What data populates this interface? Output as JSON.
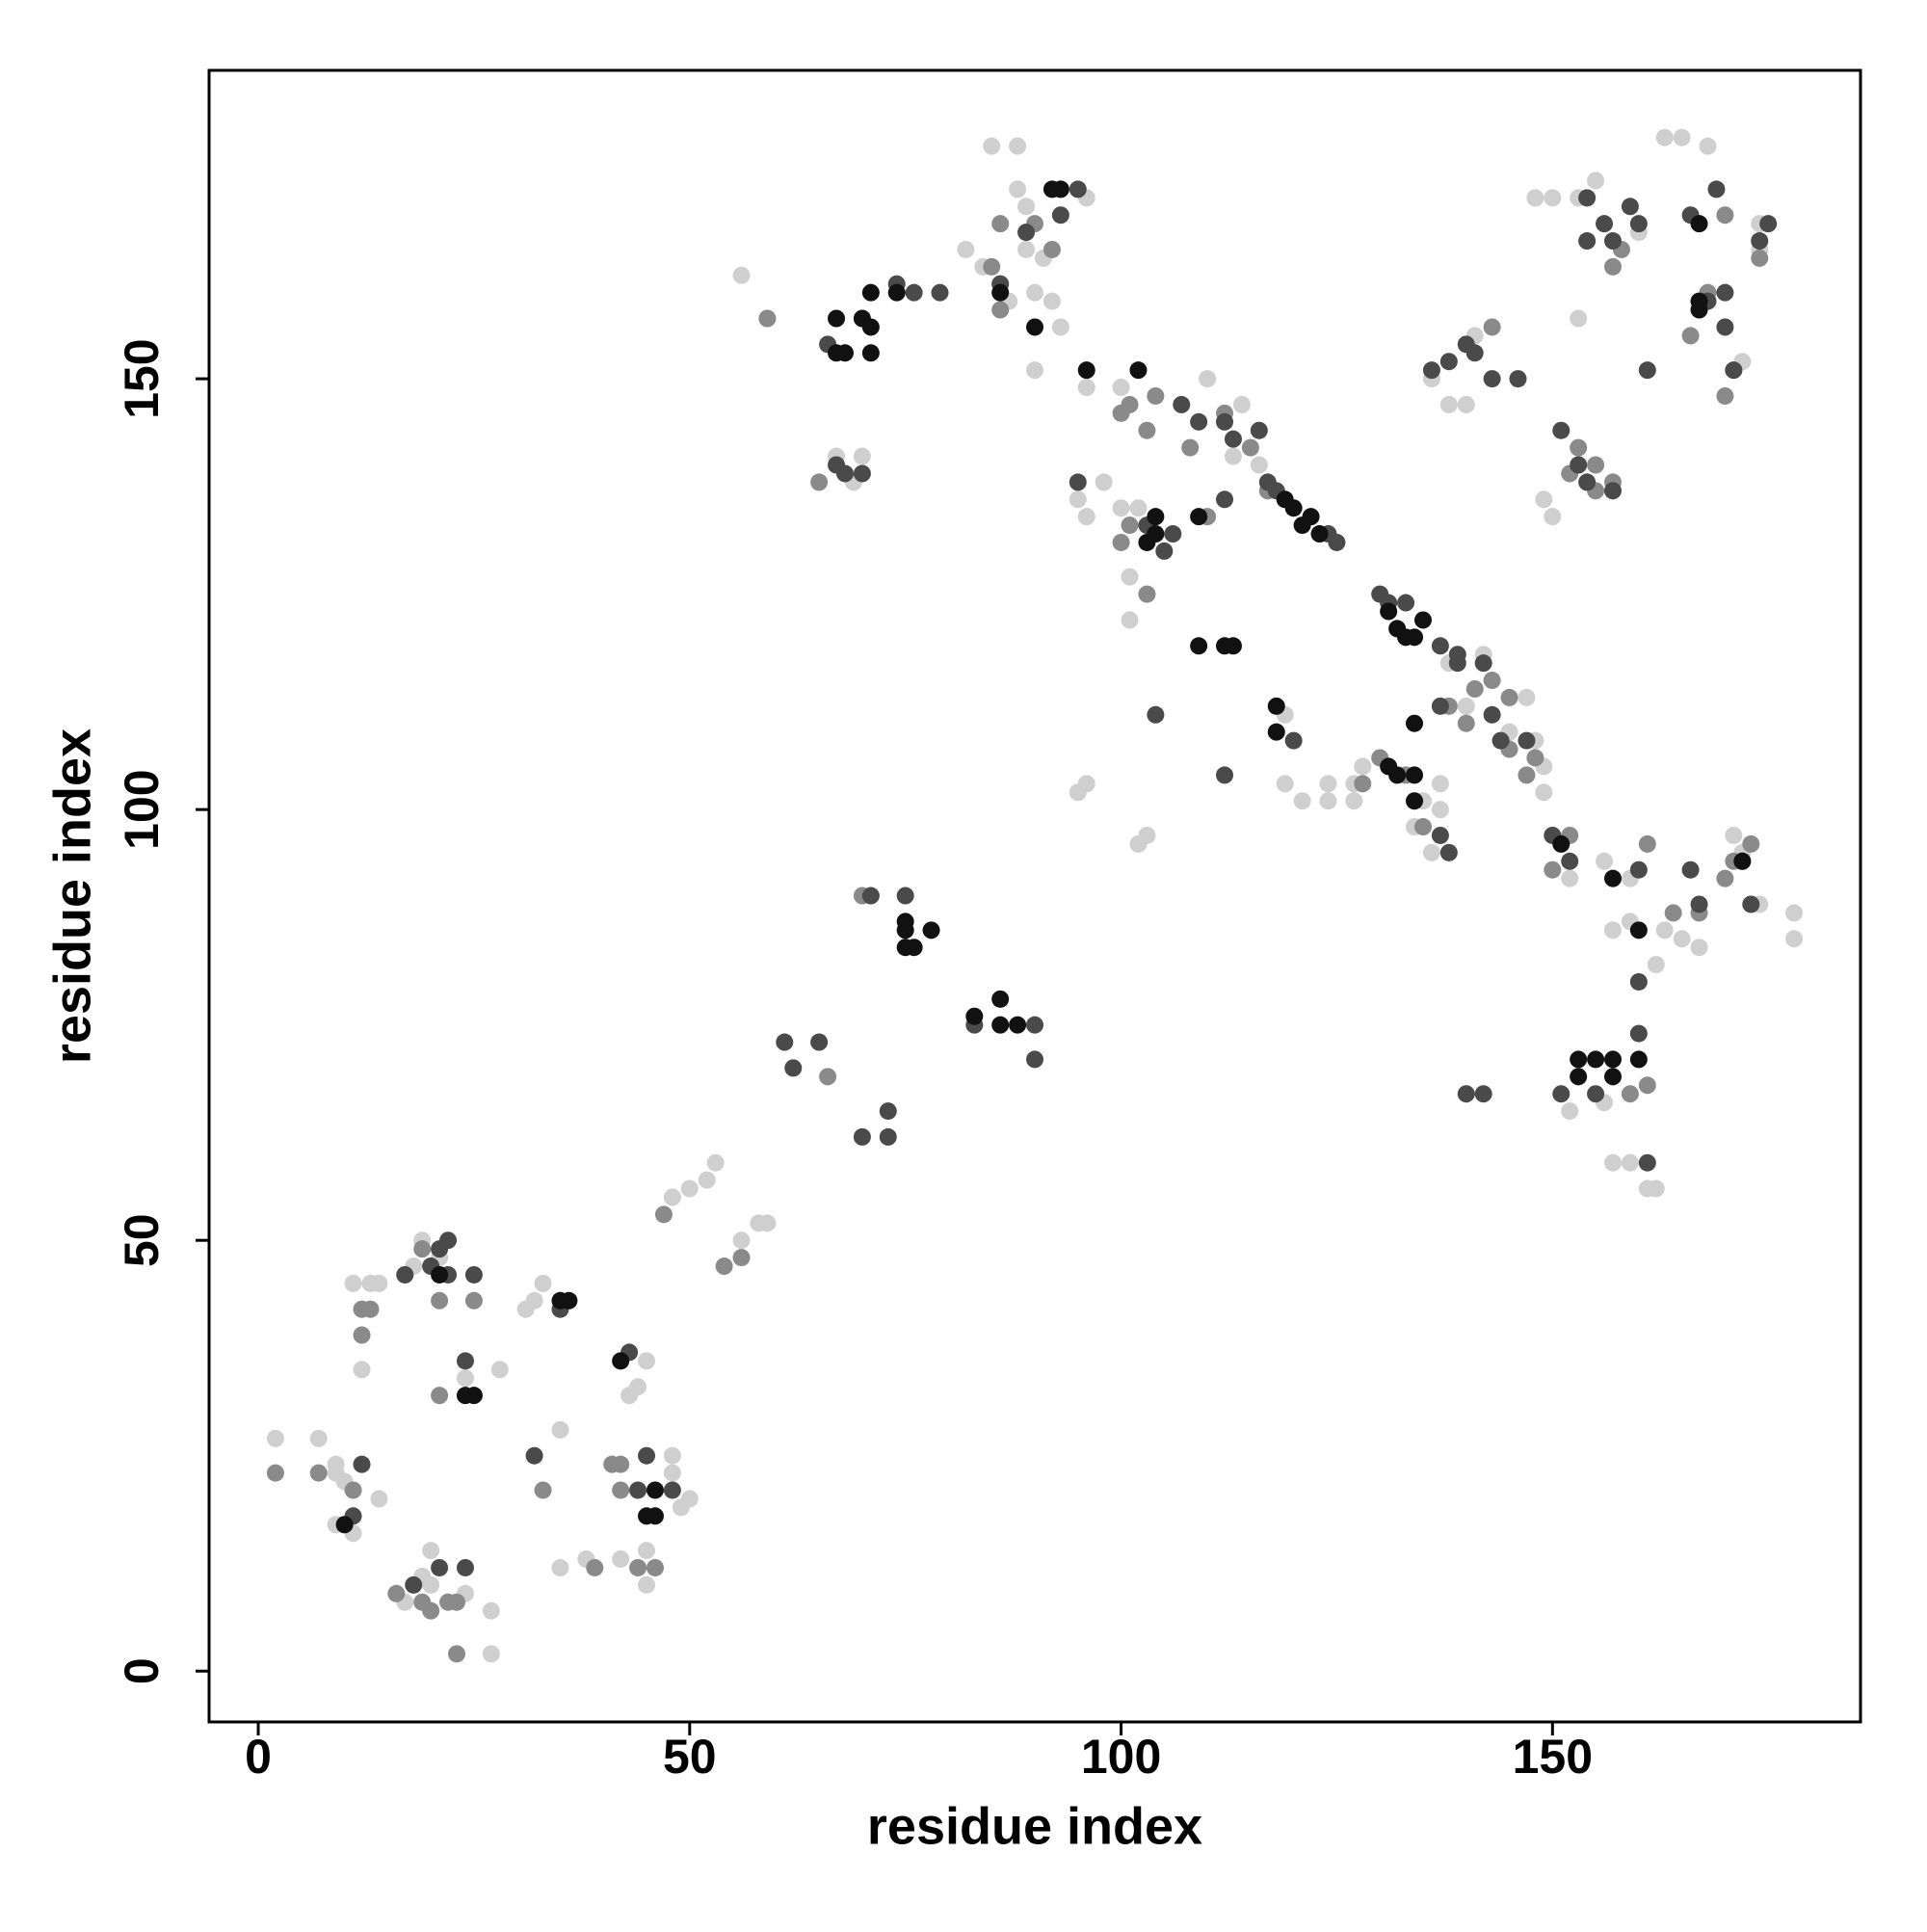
{
  "chart_data": {
    "type": "scatter",
    "x_label": "residue index",
    "y_label": "residue index",
    "xlim": [
      -5.7,
      185.7
    ],
    "ylim": [
      -5.9,
      185.8
    ],
    "xticks": [
      0,
      50,
      100,
      150
    ],
    "yticks": [
      0,
      50,
      100,
      150
    ],
    "series": [
      {
        "color": "#cfcfcf",
        "x": [
          2,
          7,
          9,
          9,
          11,
          9,
          10,
          11,
          13,
          12,
          14,
          14,
          18,
          19,
          21,
          20,
          19,
          17,
          20,
          24,
          27,
          27,
          24,
          28,
          31,
          32,
          33,
          35,
          35,
          38,
          42,
          43,
          44,
          45,
          45,
          45,
          48,
          48,
          49,
          50,
          48,
          50,
          52,
          53,
          56,
          58,
          59,
          56,
          59,
          69,
          70,
          67,
          85,
          88,
          88,
          89,
          89,
          91,
          90,
          92,
          93,
          96,
          87,
          90,
          82,
          84,
          95,
          96,
          98,
          96,
          100,
          101,
          101,
          102,
          103,
          95,
          96,
          100,
          102,
          110,
          112,
          113,
          114,
          116,
          119,
          119,
          121,
          124,
          124,
          127,
          127,
          128,
          134,
          136,
          137,
          138,
          140,
          142,
          147,
          148,
          149,
          149,
          150,
          152,
          153,
          156,
          157,
          159,
          159,
          162,
          163,
          165,
          167,
          171,
          172,
          174,
          178,
          178,
          149,
          150,
          148,
          150,
          153,
          155,
          160,
          163,
          165,
          168,
          172,
          174,
          174,
          174,
          157,
          159,
          161,
          162,
          145,
          135,
          137,
          136,
          138,
          140,
          141,
          152,
          156
        ],
        "y": [
          27,
          27,
          23,
          24,
          16,
          17,
          22,
          45,
          45,
          35,
          20,
          45,
          47,
          50,
          48,
          14,
          11,
          8,
          10,
          9,
          7,
          2,
          34,
          35,
          42,
          43,
          45,
          28,
          12,
          13,
          13,
          32,
          33,
          36,
          14,
          10,
          23,
          25,
          19,
          20,
          55,
          56,
          57,
          59,
          50,
          52,
          52,
          162,
          157,
          138,
          141,
          141,
          177,
          177,
          172,
          170,
          165,
          164,
          160,
          159,
          156,
          171,
          159,
          151,
          165,
          163,
          136,
          134,
          138,
          149,
          149,
          127,
          122,
          96,
          97,
          102,
          103,
          135,
          135,
          150,
          145,
          141,
          147,
          140,
          111,
          103,
          101,
          101,
          103,
          101,
          103,
          105,
          98,
          95,
          100,
          117,
          112,
          118,
          113,
          108,
          105,
          102,
          97,
          92,
          157,
          94,
          86,
          87,
          92,
          82,
          86,
          85,
          84,
          97,
          95,
          89,
          88,
          85,
          136,
          134,
          171,
          171,
          171,
          173,
          167,
          178,
          178,
          177,
          152,
          165,
          166,
          168,
          59,
          59,
          56,
          56,
          109,
          101,
          103,
          150,
          147,
          147,
          155,
          65,
          66
        ]
      },
      {
        "color": "#8a8a8a",
        "x": [
          2,
          7,
          11,
          12,
          12,
          13,
          17,
          19,
          21,
          25,
          23,
          23,
          21,
          33,
          41,
          42,
          39,
          44,
          46,
          47,
          54,
          56,
          59,
          66,
          70,
          65,
          85,
          86,
          86,
          86,
          90,
          92,
          100,
          101,
          103,
          104,
          108,
          110,
          112,
          115,
          100,
          101,
          103,
          117,
          128,
          130,
          133,
          135,
          138,
          140,
          141,
          143,
          145,
          145,
          147,
          148,
          150,
          152,
          164,
          167,
          170,
          171,
          173,
          161,
          153,
          152,
          155,
          155,
          157,
          157,
          158,
          161,
          159,
          166,
          168,
          170,
          171,
          143,
          170,
          174,
          42,
          19,
          20,
          22,
          16
        ],
        "y": [
          23,
          23,
          21,
          42,
          39,
          42,
          46,
          49,
          43,
          43,
          8,
          2,
          32,
          21,
          24,
          21,
          12,
          12,
          12,
          53,
          47,
          48,
          157,
          69,
          90,
          138,
          163,
          161,
          158,
          168,
          168,
          165,
          146,
          147,
          144,
          148,
          142,
          134,
          146,
          142,
          131,
          133,
          125,
          137,
          103,
          106,
          104,
          98,
          112,
          110,
          114,
          115,
          113,
          107,
          104,
          106,
          93,
          97,
          88,
          88,
          92,
          94,
          96,
          96,
          142,
          139,
          137,
          140,
          138,
          163,
          165,
          68,
          67,
          155,
          160,
          148,
          151,
          156,
          169,
          164,
          24,
          8,
          7,
          8,
          9
        ]
      },
      {
        "color": "#4a4a4a",
        "x": [
          11,
          12,
          24,
          22,
          25,
          21,
          22,
          32,
          35,
          43,
          45,
          48,
          44,
          18,
          21,
          24,
          17,
          20,
          62,
          61,
          65,
          70,
          73,
          73,
          71,
          75,
          83,
          90,
          90,
          70,
          68,
          67,
          66,
          74,
          76,
          79,
          86,
          89,
          93,
          95,
          95,
          107,
          109,
          112,
          113,
          116,
          117,
          118,
          124,
          125,
          106,
          105,
          103,
          104,
          112,
          112,
          120,
          130,
          131,
          133,
          137,
          139,
          137,
          142,
          143,
          144,
          147,
          150,
          152,
          151,
          153,
          154,
          157,
          160,
          160,
          160,
          161,
          155,
          139,
          140,
          142,
          151,
          154,
          154,
          156,
          157,
          159,
          160,
          161,
          136,
          138,
          140,
          141,
          143,
          146,
          170,
          171,
          172,
          173,
          167,
          166,
          174,
          175,
          169,
          166,
          168,
          170,
          138,
          137
        ],
        "y": [
          18,
          24,
          36,
          46,
          46,
          49,
          50,
          25,
          42,
          37,
          25,
          21,
          21,
          10,
          12,
          12,
          46,
          47,
          70,
          73,
          73,
          62,
          62,
          65,
          90,
          90,
          75,
          71,
          75,
          139,
          139,
          140,
          154,
          161,
          160,
          160,
          161,
          167,
          169,
          172,
          138,
          147,
          145,
          145,
          143,
          144,
          138,
          137,
          132,
          131,
          132,
          130,
          133,
          111,
          136,
          104,
          108,
          125,
          124,
          124,
          119,
          117,
          112,
          117,
          111,
          108,
          108,
          97,
          94,
          144,
          140,
          138,
          137,
          93,
          80,
          74,
          59,
          67,
          118,
          67,
          67,
          67,
          171,
          166,
          168,
          166,
          170,
          168,
          151,
          151,
          152,
          154,
          153,
          150,
          150,
          156,
          151,
          94,
          89,
          89,
          93,
          166,
          168,
          172,
          169,
          159,
          160,
          95,
          97
        ]
      },
      {
        "color": "#111111",
        "x": [
          10,
          24,
          25,
          21,
          35,
          36,
          42,
          46,
          45,
          46,
          67,
          67,
          68,
          71,
          70,
          71,
          71,
          74,
          75,
          75,
          75,
          76,
          78,
          83,
          86,
          86,
          88,
          86,
          90,
          92,
          93,
          96,
          102,
          104,
          104,
          103,
          109,
          109,
          112,
          113,
          118,
          118,
          119,
          120,
          122,
          121,
          123,
          131,
          132,
          133,
          134,
          135,
          134,
          131,
          132,
          134,
          134,
          157,
          160,
          153,
          155,
          153,
          157,
          157,
          160,
          167,
          167,
          172,
          151,
          167
        ],
        "y": [
          17,
          32,
          32,
          46,
          43,
          43,
          36,
          21,
          18,
          18,
          157,
          153,
          153,
          160,
          157,
          156,
          153,
          160,
          87,
          86,
          84,
          84,
          86,
          76,
          78,
          75,
          75,
          160,
          156,
          172,
          172,
          151,
          151,
          134,
          132,
          131,
          134,
          119,
          119,
          119,
          112,
          109,
          136,
          135,
          134,
          133,
          132,
          123,
          121,
          120,
          120,
          122,
          110,
          105,
          104,
          104,
          101,
          92,
          86,
          71,
          71,
          69,
          71,
          69,
          71,
          168,
          159,
          94,
          96,
          158
        ]
      }
    ]
  }
}
